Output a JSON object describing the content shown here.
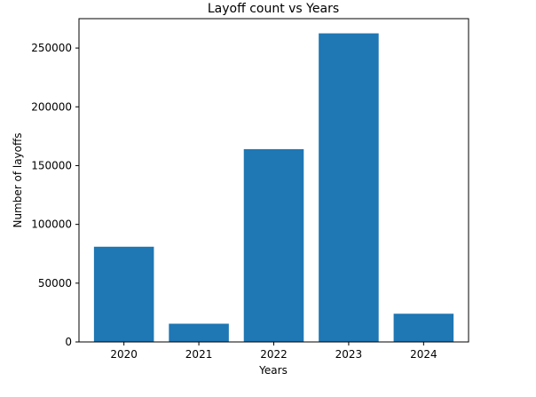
{
  "chart_data": {
    "type": "bar",
    "title": "Layoff count vs Years",
    "xlabel": "Years",
    "ylabel": "Number of layoffs",
    "categories": [
      "2020",
      "2021",
      "2022",
      "2023",
      "2024"
    ],
    "values": [
      81000,
      15500,
      164000,
      262500,
      24000
    ],
    "ylim": [
      0,
      275000
    ],
    "yticks": [
      0,
      50000,
      100000,
      150000,
      200000,
      250000
    ],
    "ytick_labels": [
      "0",
      "50000",
      "100000",
      "150000",
      "200000",
      "250000"
    ],
    "bar_color": "#1f77b4",
    "grid": false,
    "legend": false
  }
}
